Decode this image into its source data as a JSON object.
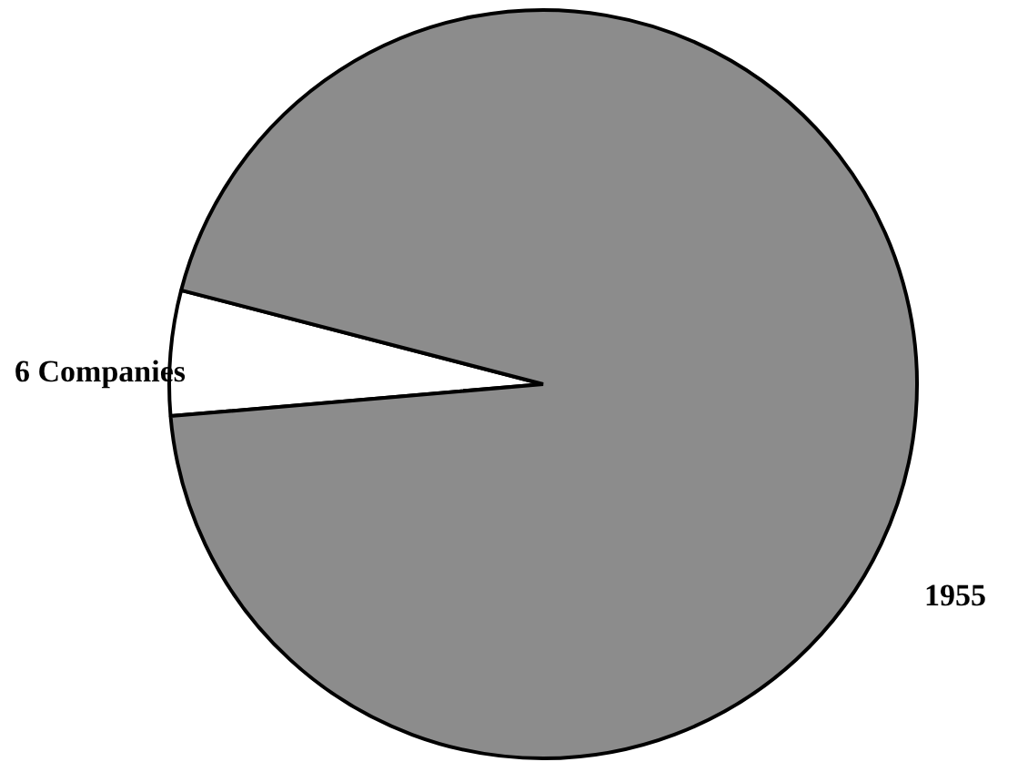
{
  "chart_data": {
    "type": "pie",
    "categories": [
      "6 Companies",
      null
    ],
    "values": [
      5.4,
      94.6
    ],
    "colors": [
      "#ffffff",
      "#8c8c8c"
    ],
    "annotations": [
      "1955"
    ],
    "legend": false
  }
}
